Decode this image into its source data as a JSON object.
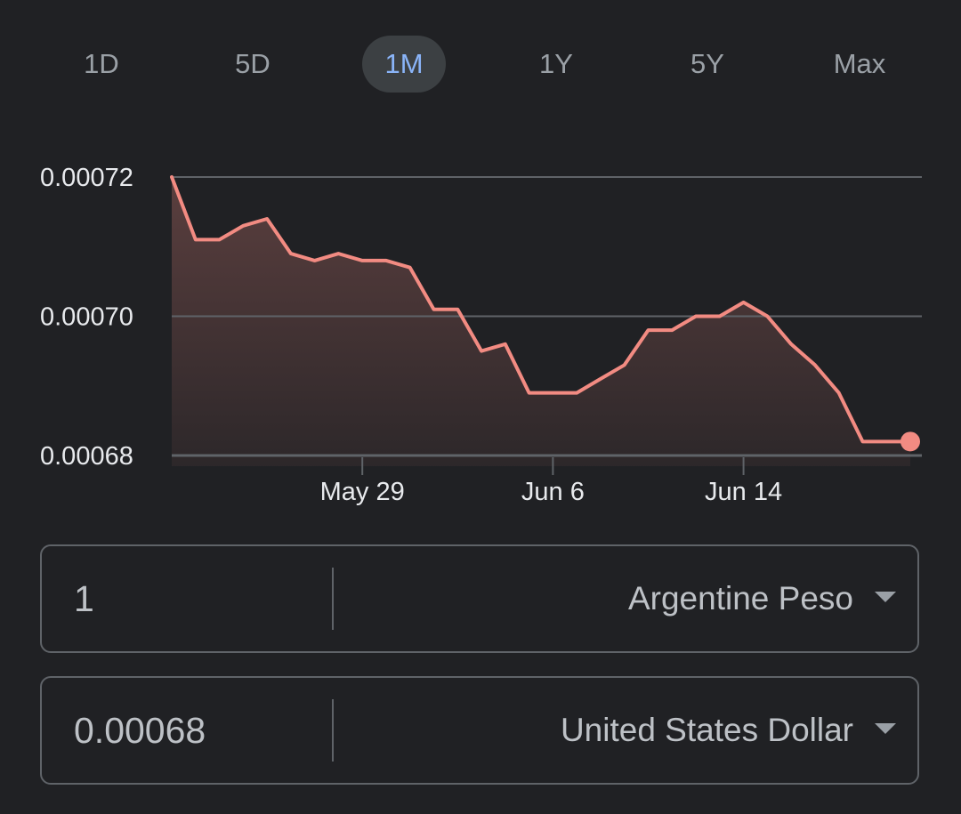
{
  "ranges": [
    {
      "label": "1D",
      "active": false
    },
    {
      "label": "5D",
      "active": false
    },
    {
      "label": "1M",
      "active": true
    },
    {
      "label": "1Y",
      "active": false
    },
    {
      "label": "5Y",
      "active": false
    },
    {
      "label": "Max",
      "active": false
    }
  ],
  "chart_data": {
    "type": "area",
    "ylim": [
      0.00068,
      0.00072
    ],
    "ytick_labels": [
      "0.00072",
      "0.00070",
      "0.00068"
    ],
    "xticks": [
      {
        "label": "May 29",
        "index": 8
      },
      {
        "label": "Jun 6",
        "index": 16
      },
      {
        "label": "Jun 14",
        "index": 24
      }
    ],
    "series": [
      {
        "values": [
          0.00072,
          0.000711,
          0.000711,
          0.000713,
          0.000714,
          0.000709,
          0.000708,
          0.000709,
          0.000708,
          0.000708,
          0.000707,
          0.000701,
          0.000701,
          0.000695,
          0.000696,
          0.000689,
          0.000689,
          0.000689,
          0.000691,
          0.000693,
          0.000698,
          0.000698,
          0.0007,
          0.0007,
          0.000702,
          0.0007,
          0.000696,
          0.000693,
          0.000689,
          0.000682,
          0.000682,
          0.000682
        ]
      }
    ],
    "grid": true,
    "colors": {
      "line": "#f28b82",
      "grid": "#5f6368"
    }
  },
  "converter": {
    "from": {
      "amount": "1",
      "currency": "Argentine Peso"
    },
    "to": {
      "amount": "0.00068",
      "currency": "United States Dollar"
    }
  }
}
